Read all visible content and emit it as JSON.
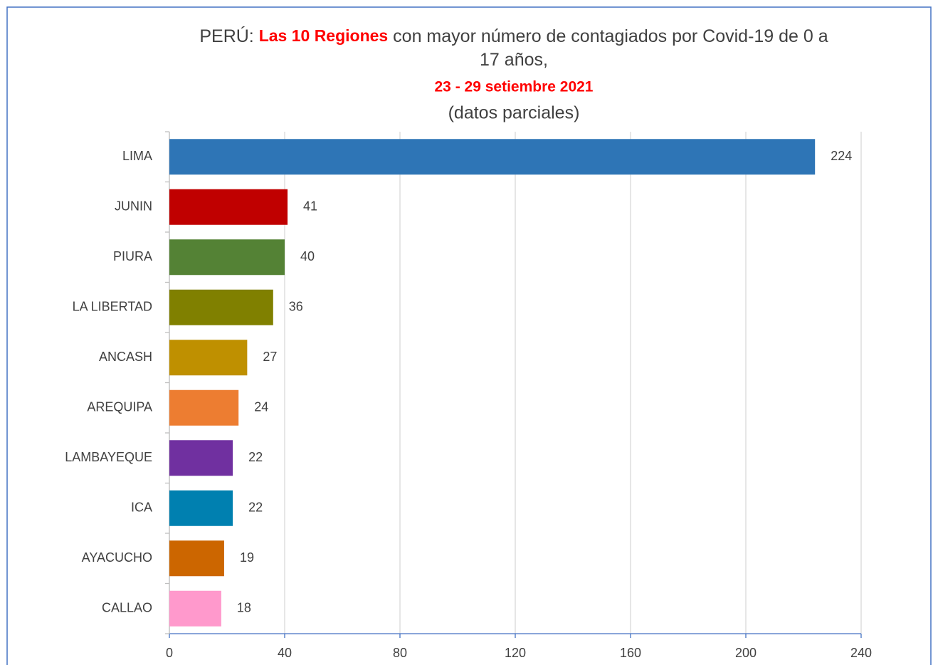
{
  "chart_data": {
    "type": "bar",
    "orientation": "horizontal",
    "title_lines": [
      [
        {
          "text": "PERÚ: "
        },
        {
          "text": "Las 10 Regiones",
          "color": "#ff0000",
          "bold": true
        },
        {
          "text": " con mayor número de contagiados por Covid-19 de 0 a"
        }
      ],
      [
        {
          "text": "17 años,"
        }
      ]
    ],
    "subtitle": "23 - 29 setiembre 2021",
    "subtitle_color": "#ff0000",
    "note": "(datos parciales)",
    "categories": [
      "LIMA",
      "JUNIN",
      "PIURA",
      "LA LIBERTAD",
      "ANCASH",
      "AREQUIPA",
      "LAMBAYEQUE",
      "ICA",
      "AYACUCHO",
      "CALLAO"
    ],
    "values": [
      224,
      41,
      40,
      36,
      27,
      24,
      22,
      22,
      19,
      18
    ],
    "colors": [
      "#2e75b6",
      "#c00000",
      "#548235",
      "#808000",
      "#bf9000",
      "#ed7d31",
      "#7030a0",
      "#0080b0",
      "#cc6600",
      "#ff99cc"
    ],
    "xlim": [
      0,
      240
    ],
    "xticks": [
      0,
      40,
      80,
      120,
      160,
      200,
      240
    ],
    "grid": true
  }
}
